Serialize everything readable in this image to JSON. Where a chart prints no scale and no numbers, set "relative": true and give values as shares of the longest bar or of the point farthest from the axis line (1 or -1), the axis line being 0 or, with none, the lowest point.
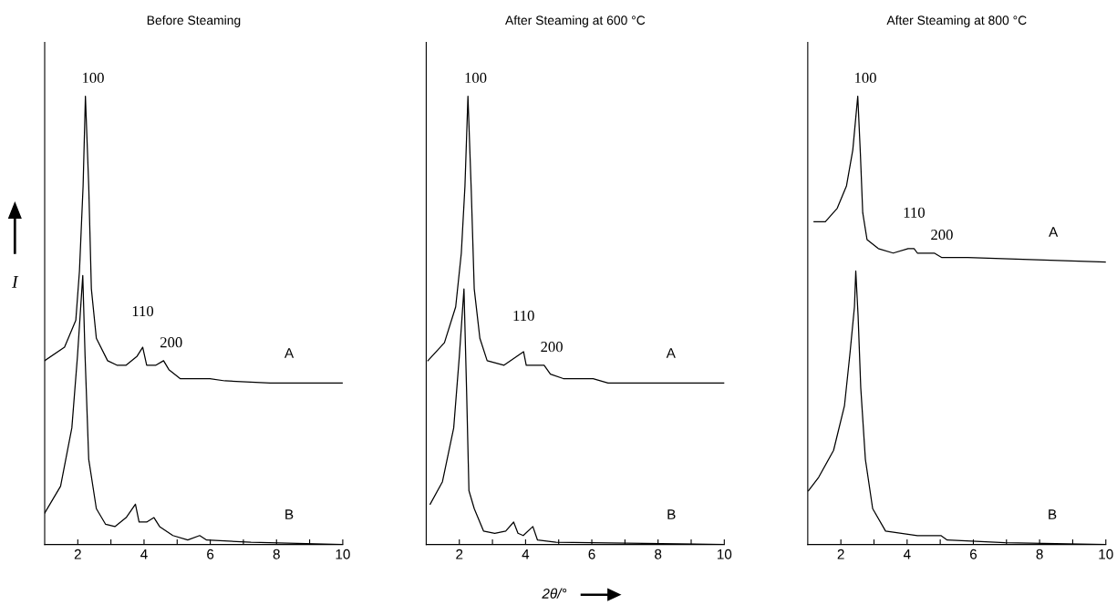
{
  "chart_data": [
    {
      "type": "line",
      "title": "Before Steaming",
      "ylabel": "I",
      "relative": true,
      "xlim": [
        1,
        10
      ],
      "xticks": [
        2,
        {
          "value": 3,
          "label": null
        },
        4,
        {
          "value": 5,
          "label": null
        },
        6,
        {
          "value": 7,
          "label": null
        },
        8,
        {
          "value": 9,
          "label": null
        },
        10
      ],
      "tick_labels": "x",
      "legend": false,
      "grid": false,
      "marker": "none",
      "line_style": "solid",
      "series": [
        {
          "name": "A",
          "color": "#000000",
          "x": [
            1.0,
            1.6,
            1.94,
            2.05,
            2.16,
            2.23,
            2.33,
            2.41,
            2.56,
            2.9,
            3.18,
            3.46,
            3.79,
            3.96,
            4.08,
            4.36,
            4.59,
            4.75,
            5.09,
            5.99,
            6.44,
            7.8,
            10
          ],
          "values": [
            0.41,
            0.44,
            0.5,
            0.61,
            0.8,
            1.0,
            0.8,
            0.57,
            0.46,
            0.41,
            0.4,
            0.4,
            0.42,
            0.44,
            0.4,
            0.4,
            0.41,
            0.39,
            0.37,
            0.37,
            0.365,
            0.36,
            0.36
          ]
        },
        {
          "name": "B",
          "color": "#000000",
          "x": [
            1.0,
            1.48,
            1.82,
            1.99,
            2.15,
            2.22,
            2.33,
            2.56,
            2.84,
            3.12,
            3.46,
            3.74,
            3.85,
            4.08,
            4.3,
            4.47,
            4.87,
            5.32,
            5.68,
            5.89,
            7.23,
            10
          ],
          "values": [
            0.07,
            0.13,
            0.26,
            0.42,
            0.6,
            0.42,
            0.19,
            0.08,
            0.045,
            0.04,
            0.06,
            0.09,
            0.05,
            0.05,
            0.06,
            0.04,
            0.02,
            0.01,
            0.02,
            0.01,
            0.005,
            0.0
          ]
        }
      ],
      "annotations": [
        {
          "text": "100",
          "x": 2.23,
          "y": 1.0
        },
        {
          "text": "110",
          "x": 3.96,
          "y": 0.44
        },
        {
          "text": "200",
          "x": 4.59,
          "y": 0.41
        }
      ]
    },
    {
      "type": "line",
      "title": "After Steaming at 600 °C",
      "xlabel": "2θ/°",
      "relative": true,
      "xlim": [
        1,
        10
      ],
      "xticks": [
        2,
        {
          "value": 3,
          "label": null
        },
        4,
        {
          "value": 5,
          "label": null
        },
        6,
        {
          "value": 7,
          "label": null
        },
        8,
        {
          "value": 9,
          "label": null
        },
        10
      ],
      "tick_labels": "x",
      "legend": false,
      "grid": false,
      "marker": "none",
      "line_style": "solid",
      "series": [
        {
          "name": "A",
          "color": "#000000",
          "x": [
            1.05,
            1.55,
            1.89,
            2.06,
            2.17,
            2.26,
            2.36,
            2.45,
            2.62,
            2.84,
            3.35,
            3.74,
            3.94,
            4.02,
            4.3,
            4.56,
            4.75,
            5.14,
            6.04,
            6.49,
            10
          ],
          "values": [
            0.41,
            0.45,
            0.53,
            0.65,
            0.8,
            1.0,
            0.79,
            0.57,
            0.46,
            0.41,
            0.4,
            0.42,
            0.43,
            0.4,
            0.4,
            0.4,
            0.38,
            0.37,
            0.37,
            0.36,
            0.36
          ]
        },
        {
          "name": "B",
          "color": "#000000",
          "x": [
            1.12,
            1.49,
            1.83,
            2.0,
            2.14,
            2.22,
            2.29,
            2.45,
            2.73,
            3.07,
            3.4,
            3.64,
            3.77,
            3.93,
            4.22,
            4.36,
            4.92,
            10
          ],
          "values": [
            0.09,
            0.14,
            0.26,
            0.42,
            0.57,
            0.34,
            0.12,
            0.08,
            0.03,
            0.025,
            0.03,
            0.05,
            0.025,
            0.02,
            0.04,
            0.01,
            0.005,
            0.0
          ]
        }
      ],
      "annotations": [
        {
          "text": "100",
          "x": 2.26,
          "y": 1.0
        },
        {
          "text": "110",
          "x": 3.94,
          "y": 0.43
        },
        {
          "text": "200",
          "x": 4.56,
          "y": 0.4
        }
      ]
    },
    {
      "type": "line",
      "title": "After Steaming at 800 °C",
      "relative": true,
      "xlim": [
        1,
        10
      ],
      "xticks": [
        2,
        {
          "value": 3,
          "label": null
        },
        4,
        {
          "value": 5,
          "label": null
        },
        6,
        {
          "value": 7,
          "label": null
        },
        8,
        {
          "value": 9,
          "label": null
        },
        10
      ],
      "tick_labels": "x",
      "legend": false,
      "grid": false,
      "marker": "none",
      "line_style": "solid",
      "series": [
        {
          "name": "A",
          "color": "#000000",
          "x": [
            1.19,
            1.53,
            1.89,
            2.17,
            2.36,
            2.51,
            2.59,
            2.66,
            2.79,
            3.13,
            3.58,
            4.03,
            4.21,
            4.31,
            4.82,
            5.05,
            5.83,
            10
          ],
          "values": [
            0.72,
            0.72,
            0.75,
            0.8,
            0.88,
            1.0,
            0.87,
            0.74,
            0.68,
            0.66,
            0.65,
            0.66,
            0.66,
            0.65,
            0.65,
            0.64,
            0.64,
            0.63
          ]
        },
        {
          "name": "B",
          "color": "#000000",
          "x": [
            1.02,
            1.33,
            1.78,
            2.11,
            2.28,
            2.41,
            2.45,
            2.52,
            2.6,
            2.74,
            2.96,
            3.35,
            4.31,
            4.71,
            5.02,
            5.21,
            6.96,
            10
          ],
          "values": [
            0.12,
            0.15,
            0.21,
            0.31,
            0.43,
            0.53,
            0.61,
            0.51,
            0.35,
            0.19,
            0.08,
            0.03,
            0.02,
            0.02,
            0.02,
            0.01,
            0.004,
            0.0
          ]
        }
      ],
      "annotations": [
        {
          "text": "100",
          "x": 2.51,
          "y": 1.0
        },
        {
          "text": "110",
          "x": 4.21,
          "y": 0.66
        },
        {
          "text": "200",
          "x": 4.82,
          "y": 0.65
        }
      ]
    }
  ]
}
